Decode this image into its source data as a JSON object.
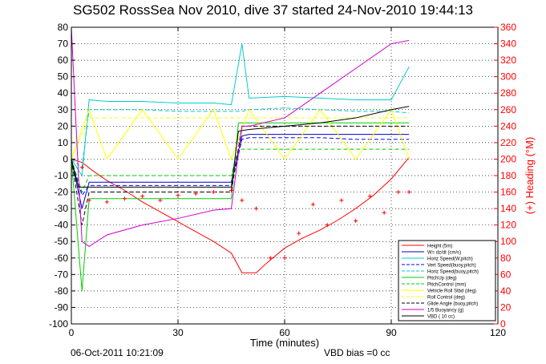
{
  "chart_data": {
    "type": "line",
    "title": "SG502 RossSea Nov 2010, dive 37 started 24-Nov-2010 19:44:13",
    "xlabel": "Time (minutes)",
    "ylabel": "",
    "y2label": "(+) Heading (°M)",
    "xlim": [
      0,
      120
    ],
    "ylim": [
      -100,
      80
    ],
    "y2lim": [
      0,
      360
    ],
    "xticks": [
      0,
      30,
      60,
      90,
      120
    ],
    "yticks": [
      -100,
      -90,
      -80,
      -70,
      -60,
      -50,
      -40,
      -30,
      -20,
      -10,
      0,
      10,
      20,
      30,
      40,
      50,
      60,
      70,
      80
    ],
    "y2ticks": [
      0,
      20,
      40,
      60,
      80,
      100,
      120,
      140,
      160,
      180,
      200,
      220,
      240,
      260,
      280,
      300,
      320,
      340,
      360
    ],
    "grid": true,
    "legend_position": "bottom-right",
    "series": [
      {
        "name": "Height (5m)",
        "color": "#ff0000",
        "style": "solid",
        "x": [
          0,
          3,
          6,
          10,
          15,
          20,
          25,
          30,
          35,
          40,
          45,
          48,
          52,
          55,
          60,
          65,
          70,
          75,
          80,
          85,
          90,
          95
        ],
        "y": [
          0,
          -2,
          -7,
          -13,
          -19,
          -26,
          -32,
          -38,
          -44,
          -50,
          -57,
          -69,
          -69,
          -63,
          -54,
          -48,
          -43,
          -37,
          -30,
          -22,
          -12,
          1
        ]
      },
      {
        "name": "W= dz/dt (cm/s)",
        "color": "#0000cc",
        "style": "solid",
        "x": [
          0,
          3,
          5,
          10,
          20,
          30,
          45,
          48,
          50,
          60,
          70,
          80,
          90,
          95
        ],
        "y": [
          0,
          -30,
          -14,
          -14,
          -14,
          -14,
          -14,
          14,
          15,
          15,
          15,
          15,
          15,
          15
        ]
      },
      {
        "name": "Horiz Speed(W,pitch)",
        "color": "#00cccc",
        "style": "solid",
        "x": [
          0,
          3,
          5,
          10,
          20,
          30,
          40,
          45,
          48,
          50,
          60,
          70,
          80,
          90,
          95
        ],
        "y": [
          0,
          -10,
          36,
          35,
          35,
          34,
          34,
          33,
          70,
          37,
          38,
          37,
          36,
          36,
          56
        ]
      },
      {
        "name": "Vert Speed(buoy,pitch)",
        "color": "#0000ff",
        "style": "dash",
        "x": [
          0,
          3,
          5,
          10,
          20,
          30,
          45,
          48,
          50,
          60,
          70,
          80,
          90,
          95
        ],
        "y": [
          0,
          -22,
          -16,
          -16,
          -16,
          -16,
          -16,
          12,
          13,
          13,
          13,
          12,
          12,
          12
        ]
      },
      {
        "name": "Horiz Speed(buoy,pitch)",
        "color": "#00cccc",
        "style": "dash",
        "x": [
          0,
          3,
          5,
          10,
          20,
          30,
          45,
          48,
          50,
          60,
          70,
          80,
          90,
          95
        ],
        "y": [
          0,
          -5,
          30,
          30,
          30,
          29,
          29,
          29,
          30,
          31,
          30,
          29,
          29,
          28
        ]
      },
      {
        "name": "PitchUp (deg)",
        "color": "#00cc00",
        "style": "solid",
        "x": [
          0,
          3,
          5,
          10,
          20,
          30,
          45,
          47,
          50,
          60,
          70,
          80,
          90,
          95
        ],
        "y": [
          0,
          -80,
          -24,
          -24,
          -24,
          -24,
          -24,
          22,
          22,
          22,
          22,
          22,
          22,
          22
        ]
      },
      {
        "name": "PitchControl (mm)",
        "color": "#00cc00",
        "style": "dash",
        "x": [
          0,
          3,
          5,
          10,
          20,
          30,
          45,
          47,
          50,
          60,
          70,
          80,
          90,
          95
        ],
        "y": [
          0,
          -20,
          -10,
          -10,
          -10,
          -10,
          -10,
          6,
          6,
          6,
          6,
          6,
          6,
          6
        ]
      },
      {
        "name": "Vehicle Roll Stbd (deg)",
        "color": "#ffff00",
        "style": "solid",
        "x": [
          0,
          5,
          10,
          20,
          30,
          40,
          45,
          50,
          60,
          70,
          80,
          90,
          95
        ],
        "y": [
          0,
          30,
          0,
          30,
          0,
          30,
          0,
          30,
          0,
          30,
          0,
          30,
          0
        ]
      },
      {
        "name": "Roll Control (deg)",
        "color": "#ffff00",
        "style": "dash",
        "x": [
          0,
          5,
          10,
          20,
          30,
          45,
          50,
          60,
          70,
          80,
          90,
          95
        ],
        "y": [
          0,
          25,
          25,
          25,
          25,
          25,
          25,
          25,
          25,
          25,
          25,
          25
        ]
      },
      {
        "name": "Glide Angle (buoy,pitch)",
        "color": "#000000",
        "style": "dash",
        "x": [
          0,
          3,
          5,
          10,
          20,
          30,
          45,
          48,
          50,
          60,
          70,
          80,
          90,
          95
        ],
        "y": [
          0,
          -40,
          -20,
          -20,
          -20,
          -20,
          -20,
          20,
          20,
          20,
          20,
          20,
          20,
          20
        ]
      },
      {
        "name": "1/5 Buoyancy (g)",
        "color": "#cc00cc",
        "style": "solid",
        "x": [
          0,
          2,
          3,
          5,
          10,
          20,
          30,
          40,
          45,
          48,
          50,
          60,
          70,
          80,
          90,
          95
        ],
        "y": [
          80,
          -10,
          -50,
          -53,
          -46,
          -40,
          -36,
          -31,
          -30,
          20,
          20,
          25,
          40,
          55,
          70,
          72
        ]
      },
      {
        "name": "VBD ( 10 cc)",
        "color": "#000000",
        "style": "solid",
        "x": [
          0,
          2,
          5,
          10,
          20,
          30,
          45,
          47,
          50,
          60,
          70,
          80,
          90,
          95
        ],
        "y": [
          0,
          -17,
          -17,
          -17,
          -17,
          -17,
          -17,
          17,
          18,
          20,
          22,
          25,
          30,
          32
        ]
      },
      {
        "name": "Heading",
        "color": "#ff0000",
        "style": "plus",
        "axis": "y2",
        "x": [
          0,
          3,
          5,
          10,
          15,
          20,
          25,
          30,
          35,
          40,
          45,
          48,
          52,
          56,
          60,
          64,
          68,
          72,
          76,
          80,
          84,
          88,
          92,
          95
        ],
        "y": [
          200,
          190,
          150,
          148,
          152,
          155,
          150,
          156,
          158,
          160,
          162,
          150,
          140,
          80,
          80,
          110,
          145,
          120,
          150,
          125,
          155,
          135,
          160,
          160
        ]
      }
    ]
  },
  "footer": {
    "date": "06-Oct-2011 10:21:09",
    "vbd_bias": "VBD bias =0 cc"
  }
}
